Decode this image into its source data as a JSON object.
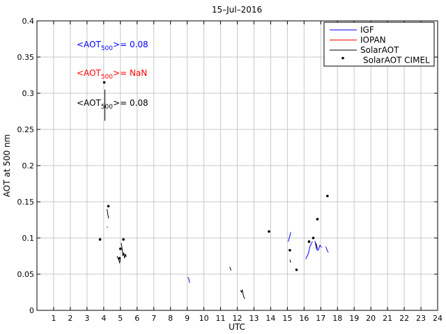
{
  "chart_data": {
    "type": "line",
    "title": "15–Jul–2016",
    "xlabel": "UTC",
    "ylabel": "AOT at 500 nm",
    "xlim": [
      0,
      24
    ],
    "ylim": [
      0,
      0.4
    ],
    "xticks": [
      1,
      2,
      3,
      4,
      5,
      6,
      7,
      8,
      9,
      10,
      11,
      12,
      13,
      14,
      15,
      16,
      17,
      18,
      19,
      20,
      21,
      22,
      23,
      24
    ],
    "yticks": [
      0,
      0.05,
      0.1,
      0.15,
      0.2,
      0.25,
      0.3,
      0.35,
      0.4
    ],
    "ytick_labels": [
      "0",
      "0.05",
      "0.1",
      "0.15",
      "0.2",
      "0.25",
      "0.3",
      "0.35",
      "0.4"
    ],
    "grid": true,
    "legend_position": "top-right",
    "legend": [
      {
        "name": "IGF",
        "style": "line",
        "color": "#0000ff"
      },
      {
        "name": "IOPAN",
        "style": "line",
        "color": "#ff0000"
      },
      {
        "name": "SolarAOT",
        "style": "line",
        "color": "#000000"
      },
      {
        "name": "SolarAOT CIMEL",
        "style": "marker",
        "color": "#000000"
      }
    ],
    "annotations": [
      {
        "prefix": "<AOT",
        "sub": "500",
        "suffix": ">= 0.08",
        "color": "#0000ff"
      },
      {
        "prefix": "<AOT",
        "sub": "500",
        "suffix": ">=  NaN",
        "color": "#ff0000"
      },
      {
        "prefix": "<AOT",
        "sub": "500",
        "suffix": ">= 0.08",
        "color": "#000000"
      }
    ],
    "series": [
      {
        "legend_index": 0,
        "segments": [
          [
            [
              9.05,
              0.046
            ],
            [
              9.1,
              0.043
            ],
            [
              9.15,
              0.038
            ]
          ],
          [
            [
              15.05,
              0.095
            ],
            [
              15.1,
              0.099
            ],
            [
              15.15,
              0.103
            ],
            [
              15.2,
              0.108
            ]
          ],
          [
            [
              16.1,
              0.071
            ],
            [
              16.25,
              0.078
            ],
            [
              16.35,
              0.088
            ],
            [
              16.5,
              0.095
            ]
          ],
          [
            [
              16.65,
              0.096
            ],
            [
              16.75,
              0.084
            ],
            [
              16.85,
              0.083
            ],
            [
              16.95,
              0.09
            ],
            [
              17.05,
              0.087
            ]
          ],
          [
            [
              17.3,
              0.088
            ],
            [
              17.4,
              0.082
            ],
            [
              17.45,
              0.08
            ]
          ]
        ]
      },
      {
        "legend_index": 2,
        "segments": [
          [
            [
              4.07,
              0.305
            ],
            [
              4.07,
              0.262
            ]
          ],
          [
            [
              4.2,
              0.14
            ],
            [
              4.25,
              0.132
            ],
            [
              4.3,
              0.127
            ]
          ],
          [
            [
              4.22,
              0.115
            ]
          ],
          [
            [
              4.8,
              0.075
            ],
            [
              4.85,
              0.072
            ],
            [
              4.9,
              0.07
            ],
            [
              4.95,
              0.066
            ],
            [
              5.0,
              0.07
            ]
          ],
          [
            [
              5.05,
              0.093
            ],
            [
              5.1,
              0.085
            ],
            [
              5.15,
              0.075
            ],
            [
              5.2,
              0.08
            ],
            [
              5.25,
              0.072
            ],
            [
              5.3,
              0.078
            ],
            [
              5.35,
              0.074
            ]
          ],
          [
            [
              11.55,
              0.06
            ],
            [
              11.6,
              0.057
            ],
            [
              11.62,
              0.055
            ]
          ],
          [
            [
              12.2,
              0.028
            ],
            [
              12.25,
              0.025
            ],
            [
              12.3,
              0.028
            ],
            [
              12.35,
              0.022
            ],
            [
              12.4,
              0.018
            ],
            [
              12.45,
              0.016
            ]
          ],
          [
            [
              15.15,
              0.07
            ],
            [
              15.2,
              0.066
            ]
          ],
          [
            [
              16.7,
              0.093
            ],
            [
              16.75,
              0.09
            ],
            [
              16.8,
              0.085
            ]
          ]
        ]
      }
    ],
    "markers": [
      [
        4.03,
        0.315
      ],
      [
        3.78,
        0.098
      ],
      [
        4.28,
        0.144
      ],
      [
        5.18,
        0.098
      ],
      [
        5.0,
        0.085
      ],
      [
        4.95,
        0.072
      ],
      [
        13.9,
        0.109
      ],
      [
        15.15,
        0.083
      ],
      [
        15.55,
        0.056
      ],
      [
        16.3,
        0.095
      ],
      [
        16.55,
        0.1
      ],
      [
        16.8,
        0.126
      ],
      [
        17.4,
        0.158
      ]
    ]
  }
}
